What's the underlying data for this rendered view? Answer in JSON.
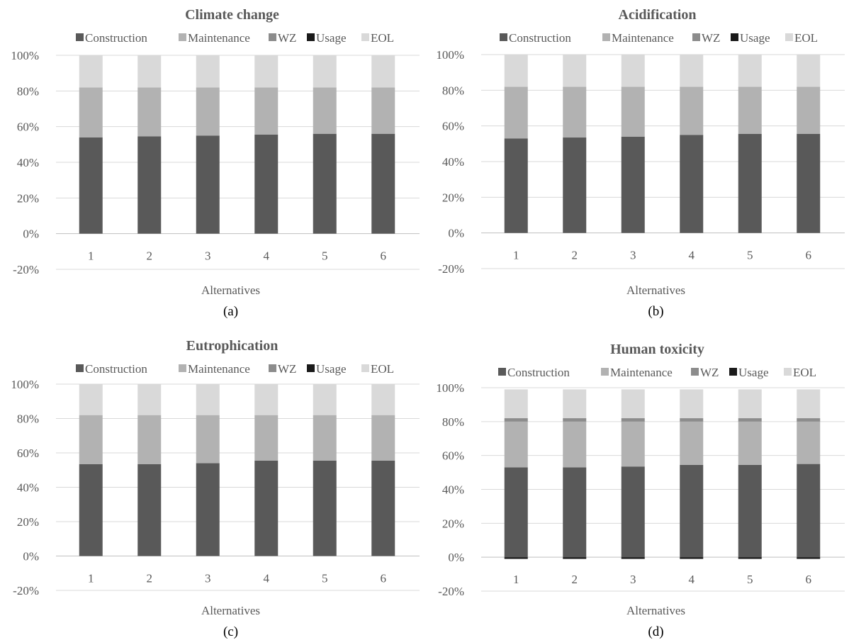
{
  "figure": {
    "x_axis_title": "Alternatives",
    "y_tick_labels": [
      "-20%",
      "0%",
      "20%",
      "40%",
      "60%",
      "80%",
      "100%"
    ],
    "legend": [
      {
        "name": "Construction",
        "color": "#595959"
      },
      {
        "name": "Maintenance",
        "color": "#b2b2b2"
      },
      {
        "name": "WZ",
        "color": "#8c8c8c"
      },
      {
        "name": "Usage",
        "color": "#1a1a1a"
      },
      {
        "name": "EOL",
        "color": "#d9d9d9"
      }
    ]
  },
  "chart_data": [
    {
      "type": "bar",
      "stacked": true,
      "title": "Climate change",
      "caption": "(a)",
      "xlabel": "Alternatives",
      "ylim": [
        -20,
        100
      ],
      "categories": [
        "1",
        "2",
        "3",
        "4",
        "5",
        "6"
      ],
      "series": [
        {
          "name": "Construction",
          "values": [
            54,
            54.5,
            55,
            55.5,
            56,
            56
          ]
        },
        {
          "name": "Maintenance",
          "values": [
            28,
            27.5,
            27,
            26.5,
            26,
            26
          ]
        },
        {
          "name": "WZ",
          "values": [
            0,
            0,
            0,
            0,
            0,
            0
          ]
        },
        {
          "name": "Usage",
          "values": [
            0,
            0,
            0,
            0,
            0,
            0
          ]
        },
        {
          "name": "EOL",
          "values": [
            18,
            18,
            18,
            18,
            18,
            18
          ]
        }
      ]
    },
    {
      "type": "bar",
      "stacked": true,
      "title": "Acidification",
      "caption": "(b)",
      "xlabel": "Alternatives",
      "ylim": [
        -20,
        100
      ],
      "categories": [
        "1",
        "2",
        "3",
        "4",
        "5",
        "6"
      ],
      "series": [
        {
          "name": "Construction",
          "values": [
            53,
            53.5,
            54,
            55,
            55.5,
            55.5
          ]
        },
        {
          "name": "Maintenance",
          "values": [
            29,
            28.5,
            28,
            27,
            26.5,
            26.5
          ]
        },
        {
          "name": "WZ",
          "values": [
            0,
            0,
            0,
            0,
            0,
            0
          ]
        },
        {
          "name": "Usage",
          "values": [
            0,
            0,
            0,
            0,
            0,
            0
          ]
        },
        {
          "name": "EOL",
          "values": [
            18,
            18,
            18,
            18,
            18,
            18
          ]
        }
      ]
    },
    {
      "type": "bar",
      "stacked": true,
      "title": "Eutrophication",
      "caption": "(c)",
      "xlabel": "Alternatives",
      "ylim": [
        -20,
        100
      ],
      "categories": [
        "1",
        "2",
        "3",
        "4",
        "5",
        "6"
      ],
      "series": [
        {
          "name": "Construction",
          "values": [
            53.5,
            53.5,
            54,
            55.5,
            55.5,
            55.5
          ]
        },
        {
          "name": "Maintenance",
          "values": [
            28.5,
            28.5,
            28,
            26.5,
            26.5,
            26.5
          ]
        },
        {
          "name": "WZ",
          "values": [
            0,
            0,
            0,
            0,
            0,
            0
          ]
        },
        {
          "name": "Usage",
          "values": [
            0,
            0,
            0,
            0,
            0,
            0
          ]
        },
        {
          "name": "EOL",
          "values": [
            18,
            18,
            18,
            18,
            18,
            18
          ]
        }
      ]
    },
    {
      "type": "bar",
      "stacked": true,
      "title": "Human toxicity",
      "caption": "(d)",
      "xlabel": "Alternatives",
      "ylim": [
        -20,
        100
      ],
      "categories": [
        "1",
        "2",
        "3",
        "4",
        "5",
        "6"
      ],
      "series": [
        {
          "name": "Construction",
          "values": [
            53,
            53,
            53.5,
            54.5,
            54.5,
            55
          ]
        },
        {
          "name": "Maintenance",
          "values": [
            27,
            27,
            26.5,
            25.5,
            25.5,
            25
          ]
        },
        {
          "name": "WZ",
          "values": [
            2,
            2,
            2,
            2,
            2,
            2
          ]
        },
        {
          "name": "Usage",
          "values": [
            -1,
            -1,
            -1,
            -1,
            -1,
            -1
          ]
        },
        {
          "name": "EOL",
          "values": [
            17,
            17,
            17,
            17,
            17,
            17
          ]
        }
      ]
    }
  ]
}
